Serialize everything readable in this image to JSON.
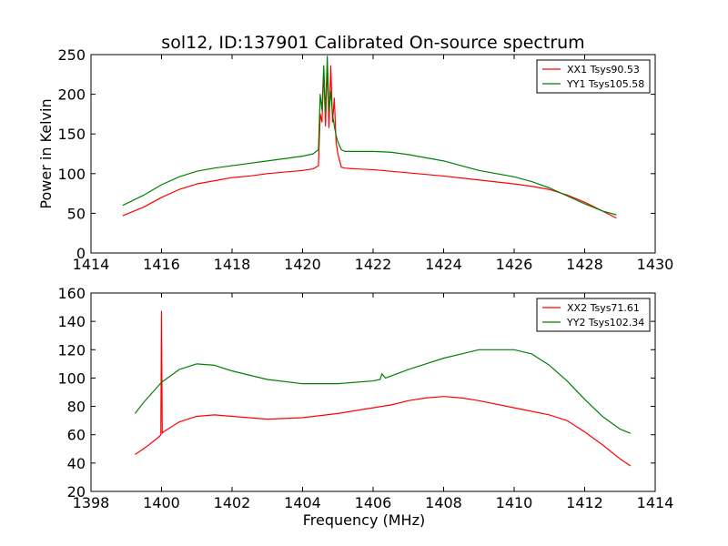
{
  "figure": {
    "title": "sol12, ID:137901 Calibrated On-source spectrum",
    "background": "#ffffff"
  },
  "chart_data": [
    {
      "type": "line",
      "title": "sol12, ID:137901 Calibrated On-source spectrum",
      "xlabel": "",
      "ylabel": "Power in Kelvin",
      "xlim": [
        1414,
        1430
      ],
      "ylim": [
        0,
        250
      ],
      "xticks": [
        1414,
        1416,
        1418,
        1420,
        1422,
        1424,
        1426,
        1428,
        1430
      ],
      "yticks": [
        0,
        50,
        100,
        150,
        200,
        250
      ],
      "grid": false,
      "legend_position": "top-right",
      "series": [
        {
          "name": "XX1 Tsys90.53",
          "color": "#ff0000",
          "x": [
            1414.9,
            1415.5,
            1416.0,
            1416.5,
            1417.0,
            1417.5,
            1418.0,
            1418.5,
            1419.0,
            1419.5,
            1420.0,
            1420.3,
            1420.45,
            1420.5,
            1420.55,
            1420.6,
            1420.65,
            1420.7,
            1420.75,
            1420.8,
            1420.85,
            1420.9,
            1420.95,
            1421.0,
            1421.1,
            1421.2,
            1421.5,
            1422.0,
            1423.0,
            1424.0,
            1425.0,
            1426.0,
            1426.5,
            1427.0,
            1427.5,
            1428.0,
            1428.5,
            1428.9
          ],
          "values": [
            47,
            58,
            70,
            80,
            87,
            91,
            95,
            97,
            100,
            102,
            104,
            106,
            110,
            175,
            165,
            230,
            160,
            237,
            158,
            236,
            165,
            195,
            140,
            125,
            108,
            107,
            106,
            105,
            101,
            97,
            92,
            87,
            84,
            80,
            73,
            64,
            53,
            44
          ]
        },
        {
          "name": "YY1 Tsys105.58",
          "color": "#008000",
          "x": [
            1414.9,
            1415.5,
            1416.0,
            1416.5,
            1417.0,
            1417.5,
            1418.0,
            1418.5,
            1419.0,
            1419.5,
            1420.0,
            1420.3,
            1420.45,
            1420.5,
            1420.55,
            1420.6,
            1420.65,
            1420.7,
            1420.75,
            1420.8,
            1420.85,
            1420.9,
            1420.95,
            1421.0,
            1421.1,
            1421.2,
            1421.5,
            1422.0,
            1422.5,
            1423.0,
            1423.5,
            1424.0,
            1425.0,
            1426.0,
            1426.5,
            1427.0,
            1427.5,
            1428.0,
            1428.5,
            1428.9
          ],
          "values": [
            60,
            73,
            86,
            96,
            103,
            107,
            110,
            113,
            116,
            119,
            122,
            125,
            130,
            200,
            180,
            236,
            175,
            248,
            180,
            203,
            175,
            160,
            148,
            140,
            130,
            128,
            128,
            128,
            127,
            124,
            120,
            116,
            104,
            96,
            90,
            82,
            72,
            62,
            53,
            48
          ]
        }
      ]
    },
    {
      "type": "line",
      "title": "",
      "xlabel": "Frequency (MHz)",
      "ylabel": "",
      "xlim": [
        1398,
        1414
      ],
      "ylim": [
        20,
        160
      ],
      "xticks": [
        1398,
        1400,
        1402,
        1404,
        1406,
        1408,
        1410,
        1412,
        1414
      ],
      "yticks": [
        20,
        40,
        60,
        80,
        100,
        120,
        140,
        160
      ],
      "grid": false,
      "legend_position": "top-right",
      "series": [
        {
          "name": "XX2 Tsys71.61",
          "color": "#ff0000",
          "x": [
            1399.25,
            1399.6,
            1399.95,
            1399.98,
            1400.0,
            1400.02,
            1400.05,
            1400.5,
            1401.0,
            1401.5,
            1402.0,
            1403.0,
            1404.0,
            1405.0,
            1406.0,
            1406.5,
            1407.0,
            1407.5,
            1408.0,
            1408.5,
            1409.0,
            1410.0,
            1411.0,
            1411.5,
            1412.0,
            1412.5,
            1413.0,
            1413.3
          ],
          "values": [
            46,
            52,
            59,
            60,
            147,
            61,
            62,
            69,
            73,
            74,
            73,
            71,
            72,
            75,
            79,
            81,
            84,
            86,
            87,
            86,
            84,
            79,
            74,
            70,
            62,
            53,
            43,
            38
          ]
        },
        {
          "name": "YY2 Tsys102.34",
          "color": "#008000",
          "x": [
            1399.25,
            1399.5,
            1400.0,
            1400.5,
            1401.0,
            1401.5,
            1402.0,
            1403.0,
            1404.0,
            1405.0,
            1406.0,
            1406.2,
            1406.25,
            1406.35,
            1407.0,
            1407.5,
            1408.0,
            1408.5,
            1409.0,
            1409.5,
            1410.0,
            1410.5,
            1411.0,
            1411.5,
            1412.0,
            1412.5,
            1413.0,
            1413.3
          ],
          "values": [
            75,
            83,
            97,
            106,
            110,
            109,
            105,
            99,
            96,
            96,
            98,
            99,
            103,
            100,
            106,
            110,
            114,
            117,
            120,
            120,
            120,
            117,
            109,
            98,
            85,
            73,
            64,
            61
          ]
        }
      ]
    }
  ]
}
